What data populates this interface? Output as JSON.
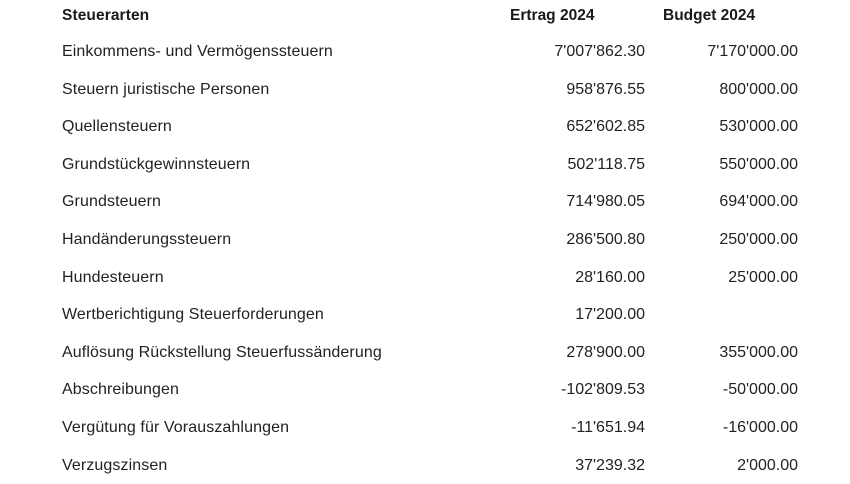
{
  "table": {
    "headers": {
      "name": "Steuerarten",
      "ertrag": "Ertrag 2024",
      "budget": "Budget 2024"
    },
    "rows": [
      {
        "name": "Einkommens- und Vermögenssteuern",
        "ertrag": "7'007'862.30",
        "budget": "7'170'000.00"
      },
      {
        "name": "Steuern juristische Personen",
        "ertrag": "958'876.55",
        "budget": "800'000.00"
      },
      {
        "name": "Quellensteuern",
        "ertrag": "652'602.85",
        "budget": "530'000.00"
      },
      {
        "name": "Grundstückgewinnsteuern",
        "ertrag": "502'118.75",
        "budget": "550'000.00"
      },
      {
        "name": "Grundsteuern",
        "ertrag": "714'980.05",
        "budget": "694'000.00"
      },
      {
        "name": "Handänderungssteuern",
        "ertrag": "286'500.80",
        "budget": "250'000.00"
      },
      {
        "name": "Hundesteuern",
        "ertrag": "28'160.00",
        "budget": "25'000.00"
      },
      {
        "name": "Wertberichtigung Steuerforderungen",
        "ertrag": "17'200.00",
        "budget": ""
      },
      {
        "name": "Auflösung Rückstellung Steuerfussänderung",
        "ertrag": "278'900.00",
        "budget": "355'000.00"
      },
      {
        "name": "Abschreibungen",
        "ertrag": "-102'809.53",
        "budget": "-50'000.00"
      },
      {
        "name": "Vergütung für Vorauszahlungen",
        "ertrag": "-11'651.94",
        "budget": "-16'000.00"
      },
      {
        "name": "Verzugszinsen",
        "ertrag": "37'239.32",
        "budget": "2'000.00"
      }
    ]
  }
}
